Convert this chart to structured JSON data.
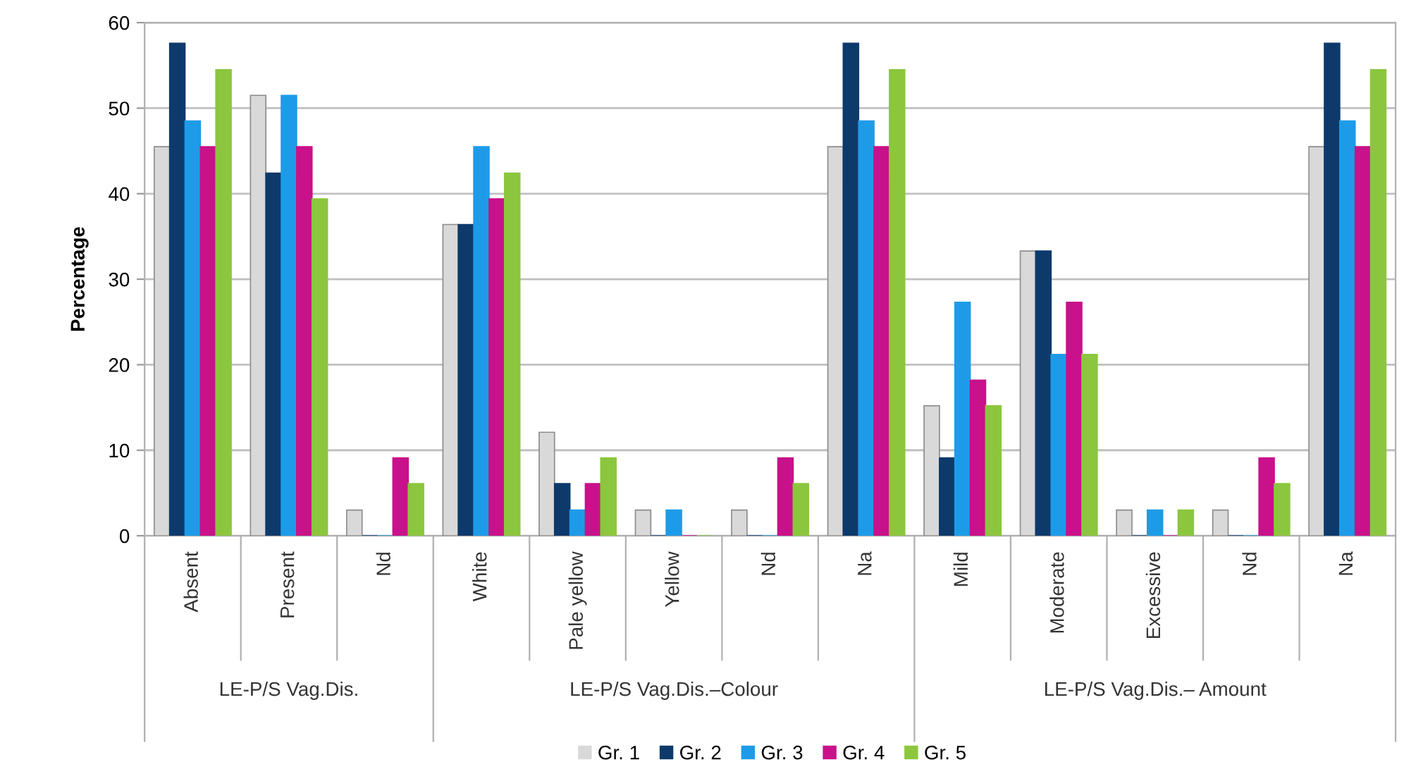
{
  "chart_data": {
    "type": "bar",
    "ylabel": "Percentage",
    "categories": [
      "Absent",
      "Present",
      "Nd",
      "White",
      "Pale yellow",
      "Yellow",
      "Nd",
      "Na",
      "Mild",
      "Moderate",
      "Excessive",
      "Nd",
      "Na"
    ],
    "annotations": [
      "LE-P/S Vag.Dis.",
      "LE-P/S Vag.Dis.–Colour",
      "LE-P/S Vag.Dis.– Amount"
    ],
    "series": [
      {
        "name": "Gr. 1",
        "color": "#d9d9d9",
        "values": [
          45.5,
          51.5,
          3,
          36.4,
          12.1,
          3,
          3,
          45.5,
          15.2,
          33.3,
          3,
          3,
          45.5
        ]
      },
      {
        "name": "Gr. 2",
        "color": "#0d3a6b",
        "values": [
          57.6,
          42.4,
          0,
          36.4,
          6.1,
          0,
          0,
          57.6,
          9.1,
          33.3,
          0,
          0,
          57.6
        ]
      },
      {
        "name": "Gr. 3",
        "color": "#1e9be8",
        "values": [
          48.5,
          51.5,
          0,
          45.5,
          3,
          3,
          0,
          48.5,
          27.3,
          21.2,
          3,
          0,
          48.5
        ]
      },
      {
        "name": "Gr. 4",
        "color": "#c8118a",
        "values": [
          45.5,
          45.5,
          9.1,
          39.4,
          6.1,
          0,
          9.1,
          45.5,
          18.2,
          27.3,
          0,
          9.1,
          45.5
        ]
      },
      {
        "name": "Gr. 5",
        "color": "#8cc63e",
        "values": [
          54.5,
          39.4,
          6.1,
          42.4,
          9.1,
          0,
          6.1,
          54.5,
          15.2,
          21.2,
          3,
          6.1,
          54.5
        ]
      }
    ],
    "ylim": [
      0,
      60
    ],
    "yticks": [
      0,
      10,
      20,
      30,
      40,
      50,
      60
    ],
    "grid": "y",
    "legend": "bottom"
  }
}
